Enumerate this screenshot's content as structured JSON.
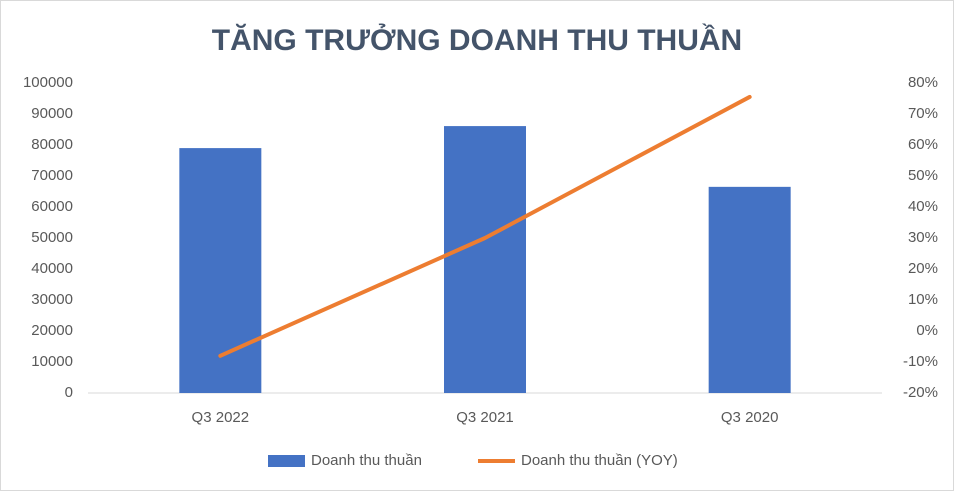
{
  "chart_data": {
    "type": "bar",
    "title": "TĂNG TRƯỞNG DOANH THU THUẦN",
    "categories": [
      "Q3 2022",
      "Q3 2021",
      "Q3 2020"
    ],
    "series": [
      {
        "name": "Doanh thu thuần",
        "color": "#4472c4",
        "values": [
          79000,
          86100,
          66500
        ]
      },
      {
        "name": "Doanh thu thuần (YOY)",
        "color": "#ed7d31",
        "type": "line",
        "axis": "y2",
        "values": [
          -8,
          30,
          75.5
        ]
      }
    ],
    "ylim": [
      0,
      100000
    ],
    "yticks": [
      0,
      10000,
      20000,
      30000,
      40000,
      50000,
      60000,
      70000,
      80000,
      90000,
      100000
    ],
    "y2lim": [
      -20,
      80
    ],
    "y2ticks": [
      {
        "value": -20,
        "label": "-20%"
      },
      {
        "value": -10,
        "label": "-10%"
      },
      {
        "value": 0,
        "label": "0%"
      },
      {
        "value": 10,
        "label": "10%"
      },
      {
        "value": 20,
        "label": "20%"
      },
      {
        "value": 30,
        "label": "30%"
      },
      {
        "value": 40,
        "label": "40%"
      },
      {
        "value": 50,
        "label": "50%"
      },
      {
        "value": 60,
        "label": "60%"
      },
      {
        "value": 70,
        "label": "70%"
      },
      {
        "value": 80,
        "label": "80%"
      }
    ],
    "grid": false,
    "legend": "bottom"
  }
}
